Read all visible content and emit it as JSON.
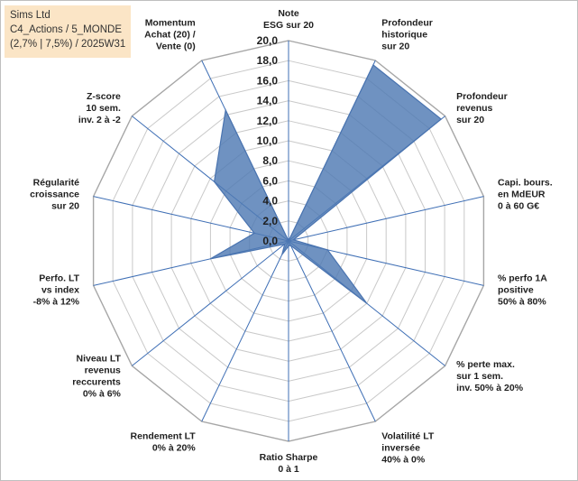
{
  "title_box": {
    "line1": "Sims Ltd",
    "line2": "C4_Actions / 5_MONDE",
    "line3": "(2,7% | 7,5%) / 2025W31"
  },
  "chart_data": {
    "type": "radar",
    "r_range": [
      0,
      20
    ],
    "r_ticks": [
      "0,0",
      "2,0",
      "4,0",
      "6,0",
      "8,0",
      "10,0",
      "12,0",
      "14,0",
      "16,0",
      "18,0",
      "20,0"
    ],
    "axes": [
      {
        "label": [
          "Note",
          "ESG sur 20"
        ],
        "value": 0
      },
      {
        "label": [
          "Profondeur",
          "historique",
          "sur 20"
        ],
        "value": 19.5
      },
      {
        "label": [
          "Profondeur",
          "revenus",
          "sur 20"
        ],
        "value": 19.5
      },
      {
        "label": [
          "Capi. bours.",
          "en MdEUR",
          "0 à 60 G€"
        ],
        "value": 0.5
      },
      {
        "label": [
          "% perfo 1A",
          "positive",
          "50% à 80%"
        ],
        "value": 4.0
      },
      {
        "label": [
          "% perte max.",
          "sur 1 sem.",
          "inv. 50% à 20%"
        ],
        "value": 10.0
      },
      {
        "label": [
          "Volatilité LT",
          "inversée",
          "40% à 0%"
        ],
        "value": 0.5
      },
      {
        "label": [
          "Ratio Sharpe",
          "0 à 1"
        ],
        "value": 0.5
      },
      {
        "label": [
          "Rendement LT",
          "0% à 20%"
        ],
        "value": 1.5
      },
      {
        "label": [
          "Niveau LT",
          "revenus",
          "reccurents",
          "0% à 6%"
        ],
        "value": 0.5
      },
      {
        "label": [
          "Perfo. LT",
          "vs index",
          "-8% à 12%"
        ],
        "value": 8.0
      },
      {
        "label": [
          "Régularité",
          "croissance",
          "sur 20"
        ],
        "value": 3.5
      },
      {
        "label": [
          "Z-score",
          "10 sem.",
          "inv. 2 à -2"
        ],
        "value": 9.5
      },
      {
        "label": [
          "Momentum",
          "Achat (20) /",
          "Vente (0)"
        ],
        "value": 14.5
      }
    ],
    "grid": true,
    "colors": {
      "fill": "#4f7ab3",
      "line": "#4a74b0",
      "spoke": "#3f6fb5",
      "grid": "#c9c9c9",
      "title_bg": "#fbe5c6"
    }
  }
}
